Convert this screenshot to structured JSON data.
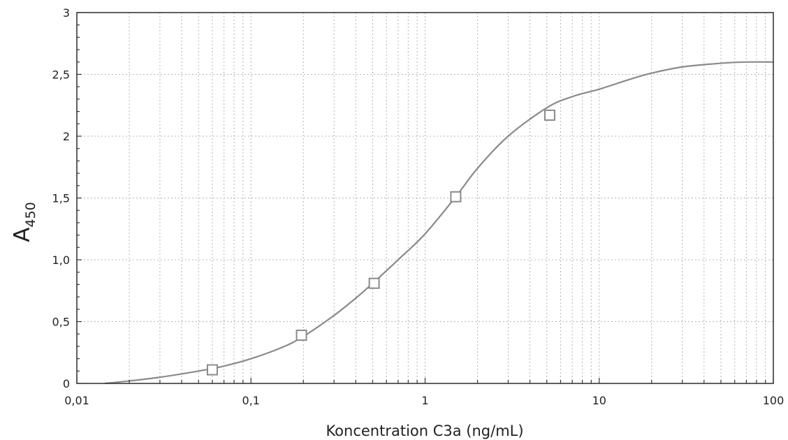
{
  "chart_data": {
    "type": "scatter",
    "x_scale": "log",
    "xlabel": "Koncentration C3a (ng/mL)",
    "ylabel": {
      "main": "A",
      "subscript": "450"
    },
    "xlim": [
      0.01,
      100
    ],
    "ylim": [
      0,
      3
    ],
    "grid": true,
    "x_ticks": [
      {
        "value": 0.01,
        "label": "0,01"
      },
      {
        "value": 0.1,
        "label": "0,1"
      },
      {
        "value": 1,
        "label": "1"
      },
      {
        "value": 10,
        "label": "10"
      },
      {
        "value": 100,
        "label": "100"
      }
    ],
    "y_ticks": [
      {
        "value": 0,
        "label": "0"
      },
      {
        "value": 0.5,
        "label": "0,5"
      },
      {
        "value": 1,
        "label": "1,0"
      },
      {
        "value": 1.5,
        "label": "1,5"
      },
      {
        "value": 2,
        "label": "2"
      },
      {
        "value": 2.5,
        "label": "2,5"
      },
      {
        "value": 3,
        "label": "3"
      }
    ],
    "series": [
      {
        "kind": "markers",
        "marker": "open-square",
        "color": "#8a8a8a",
        "x": [
          0.06,
          0.195,
          0.51,
          1.5,
          5.2
        ],
        "y": [
          0.11,
          0.39,
          0.81,
          1.51,
          2.17
        ]
      },
      {
        "kind": "fit-curve",
        "color": "#8a8a8a",
        "x": [
          0.0145,
          0.02,
          0.03,
          0.05,
          0.07,
          0.1,
          0.15,
          0.2,
          0.3,
          0.4,
          0.5,
          0.7,
          1,
          1.5,
          2,
          3,
          5,
          7,
          10,
          15,
          20,
          30,
          50,
          70,
          100
        ],
        "y": [
          0,
          0.02,
          0.05,
          0.1,
          0.14,
          0.2,
          0.29,
          0.38,
          0.55,
          0.69,
          0.81,
          1.0,
          1.21,
          1.51,
          1.74,
          2.0,
          2.23,
          2.32,
          2.38,
          2.46,
          2.51,
          2.56,
          2.59,
          2.6,
          2.6
        ]
      }
    ]
  }
}
